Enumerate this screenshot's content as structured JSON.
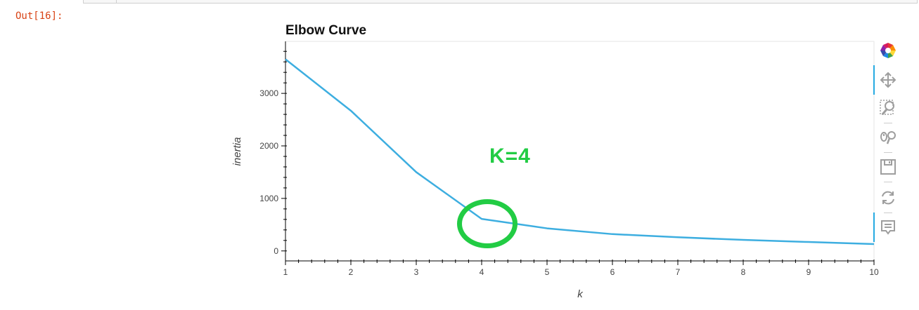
{
  "notebook": {
    "out_prompt": "Out[16]:"
  },
  "chart_data": {
    "type": "line",
    "title": "Elbow Curve",
    "xlabel": "k",
    "ylabel": "inertia",
    "x": [
      1,
      2,
      3,
      4,
      5,
      6,
      7,
      8,
      9,
      10
    ],
    "series": [
      {
        "values": [
          3650,
          2670,
          1500,
          610,
          430,
          320,
          260,
          210,
          170,
          130
        ],
        "color": "#3daee0"
      }
    ],
    "xlim": [
      1,
      10
    ],
    "ylim": [
      -190,
      3990
    ],
    "xticks": [
      1,
      2,
      3,
      4,
      5,
      6,
      7,
      8,
      9,
      10
    ],
    "yticks": [
      0,
      1000,
      2000,
      3000
    ],
    "ytick_labels": [
      "0",
      "1000",
      "2000",
      "3000"
    ],
    "grid": false
  },
  "annotations": {
    "label": "K=4",
    "color": "#22cc44"
  },
  "toolbar": {
    "tools": [
      {
        "name": "bokeh-logo-icon",
        "title": "Bokeh"
      },
      {
        "name": "pan-icon",
        "title": "Pan"
      },
      {
        "name": "box-zoom-icon",
        "title": "Box Zoom"
      },
      {
        "name": "wheel-zoom-icon",
        "title": "Wheel Zoom"
      },
      {
        "name": "save-icon",
        "title": "Save"
      },
      {
        "name": "reset-icon",
        "title": "Reset"
      },
      {
        "name": "hover-icon",
        "title": "Hover"
      }
    ]
  }
}
